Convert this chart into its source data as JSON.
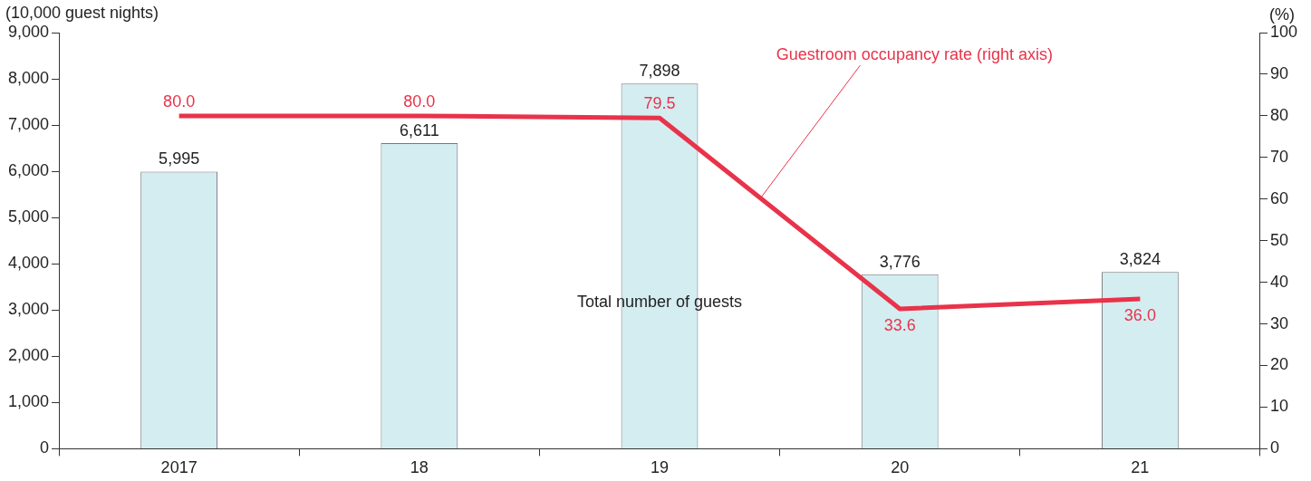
{
  "chart_data": {
    "type": "bar",
    "categories": [
      "2017",
      "18",
      "19",
      "20",
      "21"
    ],
    "series": [
      {
        "name": "Total number of guests",
        "color": "#d4edf1",
        "values": [
          5995,
          6611,
          7898,
          3776,
          3824
        ],
        "value_labels": [
          "5,995",
          "6,611",
          "7,898",
          "3,776",
          "3,824"
        ]
      },
      {
        "name": "Guestroom occupancy rate (right axis)",
        "type": "line",
        "axis": "y2",
        "color": "#e8334a",
        "values": [
          80.0,
          80.0,
          79.5,
          33.6,
          36.0
        ],
        "value_labels": [
          "80.0",
          "80.0",
          "79.5",
          "33.6",
          "36.0"
        ]
      }
    ],
    "ylabel": "(10,000 guest nights)",
    "y2label": "(%)",
    "ylim": [
      0,
      9000
    ],
    "yticks": [
      {
        "value": 0,
        "label": "0"
      },
      {
        "value": 1000,
        "label": "1,000"
      },
      {
        "value": 2000,
        "label": "2,000"
      },
      {
        "value": 3000,
        "label": "3,000"
      },
      {
        "value": 4000,
        "label": "4,000"
      },
      {
        "value": 5000,
        "label": "5,000"
      },
      {
        "value": 6000,
        "label": "6,000"
      },
      {
        "value": 7000,
        "label": "7,000"
      },
      {
        "value": 8000,
        "label": "8,000"
      },
      {
        "value": 9000,
        "label": "9,000"
      }
    ],
    "y2lim": [
      0,
      100
    ],
    "y2ticks": [
      0,
      10,
      20,
      30,
      40,
      50,
      60,
      70,
      80,
      90,
      100
    ],
    "grid": false,
    "legend": false,
    "marker": "none",
    "line_style": "solid"
  }
}
